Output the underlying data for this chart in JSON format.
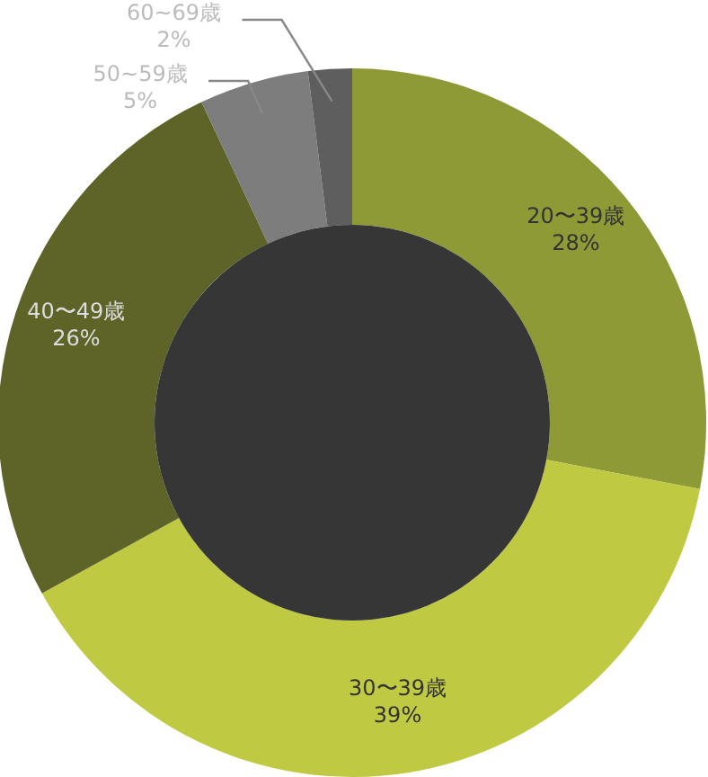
{
  "chart_data": {
    "type": "donut",
    "categories": [
      "20〜39歳",
      "30〜39歳",
      "40〜49歳",
      "50~59歳",
      "60~69歳"
    ],
    "values": [
      28,
      39,
      26,
      5,
      2
    ],
    "colors": [
      "#8e9a35",
      "#c0c942",
      "#5e6328",
      "#7d7d7d",
      "#5e5e5e"
    ],
    "value_labels": [
      "28%",
      "39%",
      "26%",
      "5%",
      "2%"
    ]
  }
}
